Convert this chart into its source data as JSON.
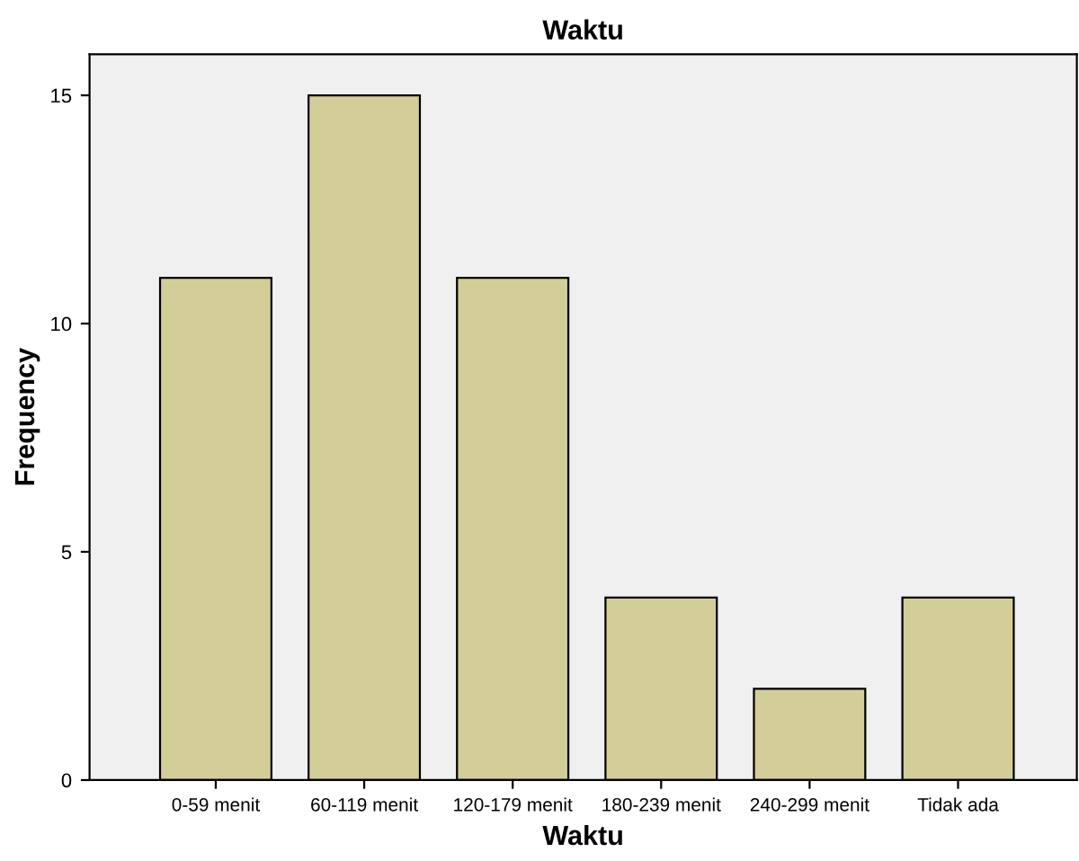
{
  "chart_data": {
    "type": "bar",
    "title": "Waktu",
    "xlabel": "Waktu",
    "ylabel": "Frequency",
    "categories": [
      "0-59 menit",
      "60-119 menit",
      "120-179 menit",
      "180-239 menit",
      "240-299 menit",
      "Tidak ada"
    ],
    "values": [
      11,
      15,
      11,
      4,
      2,
      4
    ],
    "color": "#d3ce97",
    "ylim": [
      0,
      15.9
    ],
    "yticks": [
      0,
      5,
      10,
      15
    ],
    "grid": false,
    "legend": false
  }
}
